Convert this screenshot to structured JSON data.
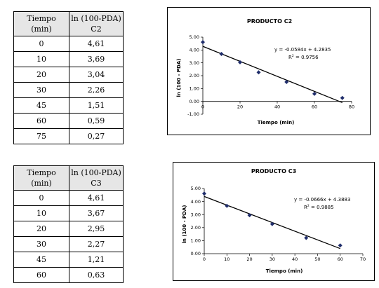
{
  "tables": [
    {
      "header": {
        "col1": "Tiempo\n(min)",
        "col2": "ln (100-PDA)\nC2"
      },
      "rows": [
        [
          "0",
          "4,61"
        ],
        [
          "10",
          "3,69"
        ],
        [
          "20",
          "3,04"
        ],
        [
          "30",
          "2,26"
        ],
        [
          "45",
          "1,51"
        ],
        [
          "60",
          "0,59"
        ],
        [
          "75",
          "0,27"
        ]
      ]
    },
    {
      "header": {
        "col1": "Tiempo\n(min)",
        "col2": "ln (100-PDA)\nC3"
      },
      "rows": [
        [
          "0",
          "4,61"
        ],
        [
          "10",
          "3,67"
        ],
        [
          "20",
          "2,95"
        ],
        [
          "30",
          "2,27"
        ],
        [
          "45",
          "1,21"
        ],
        [
          "60",
          "0,63"
        ]
      ]
    }
  ],
  "chart_data": [
    {
      "type": "scatter",
      "title": "PRODUCTO C2",
      "xlabel": "Tiempo (min)",
      "ylabel": "ln (100 - PDA)",
      "x": [
        0,
        10,
        20,
        30,
        45,
        60,
        75
      ],
      "y": [
        4.61,
        3.69,
        3.04,
        2.26,
        1.51,
        0.59,
        0.27
      ],
      "xlim": [
        0,
        80
      ],
      "ylim": [
        -1,
        5
      ],
      "xticks": [
        0,
        20,
        40,
        60,
        80
      ],
      "yticks": [
        -1,
        0,
        1,
        2,
        3,
        4,
        5
      ],
      "xtick_labels": [
        "0",
        "20",
        "40",
        "60",
        "80"
      ],
      "ytick_labels": [
        "-1.00",
        "0.00",
        "1.00",
        "2.00",
        "3.00",
        "4.00",
        "5.00"
      ],
      "trendline": {
        "slope": -0.0584,
        "intercept": 4.2835,
        "x_range": [
          0,
          75
        ]
      },
      "equation": "y = -0.0584x + 4.2835",
      "r2_label": "R",
      "r2_value": " = 0.9756",
      "grid": false,
      "marker_color": "#1f2d6b",
      "line_color": "#000000"
    },
    {
      "type": "scatter",
      "title": "PRODUCTO C3",
      "xlabel": "Tiempo (min)",
      "ylabel": "ln (100 - PDA)",
      "x": [
        0,
        10,
        20,
        30,
        45,
        60
      ],
      "y": [
        4.61,
        3.67,
        2.95,
        2.27,
        1.21,
        0.63
      ],
      "xlim": [
        0,
        70
      ],
      "ylim": [
        0,
        5
      ],
      "xticks": [
        0,
        10,
        20,
        30,
        40,
        50,
        60,
        70
      ],
      "yticks": [
        0,
        1,
        2,
        3,
        4,
        5
      ],
      "xtick_labels": [
        "0",
        "10",
        "20",
        "30",
        "40",
        "50",
        "60",
        "70"
      ],
      "ytick_labels": [
        "0.00",
        "1.00",
        "2.00",
        "3.00",
        "4.00",
        "5.00"
      ],
      "trendline": {
        "slope": -0.0666,
        "intercept": 4.3883,
        "x_range": [
          0,
          60
        ]
      },
      "equation": "y = -0.0666x + 4.3883",
      "r2_label": "R",
      "r2_value": " = 0.9885",
      "grid": false,
      "marker_color": "#1f2d6b",
      "line_color": "#000000"
    }
  ]
}
